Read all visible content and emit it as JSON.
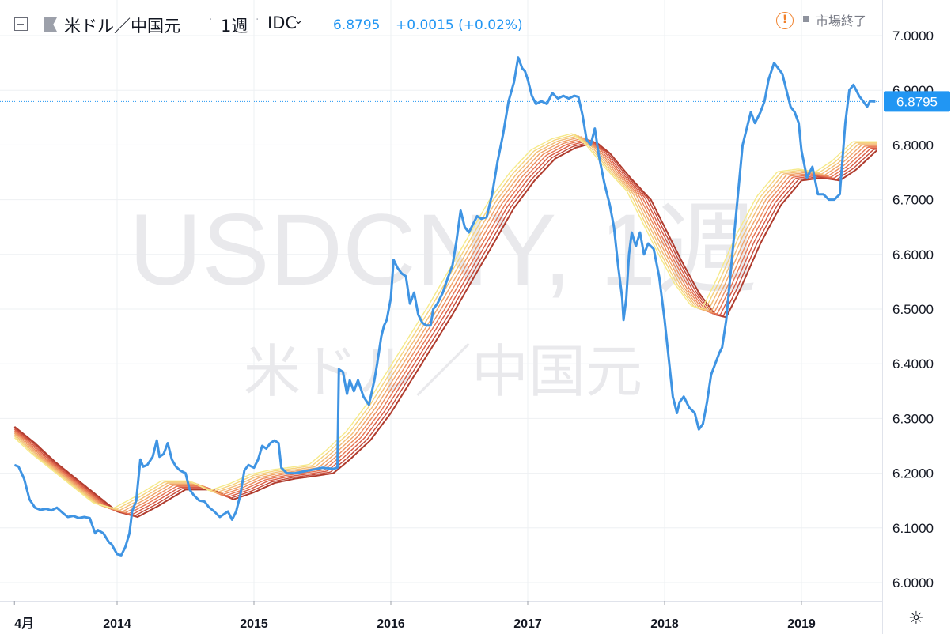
{
  "header": {
    "symbol_name": "米ドル／中国元",
    "interval": "1週",
    "source": "IDC",
    "price": "6.8795",
    "change": "+0.0015 (+0.02%)",
    "market_status": "市場終了",
    "sep": "·"
  },
  "watermark": {
    "symbol": "USDCNY, 1週",
    "name": "米ドル／中国元"
  },
  "icons": {
    "toggle": "plus-square-icon",
    "flag": "flag-icon",
    "dropdown": "chevron-down-icon",
    "alert": "alert-circle-icon",
    "status": "square-icon",
    "settings": "gear-icon"
  },
  "colors": {
    "price_line": "#3f94e3",
    "current_price_label_bg": "#2196f3",
    "ribbon": [
      "#f6ea8a",
      "#f5d37e",
      "#f3bd76",
      "#f0a56a",
      "#ec8d5e",
      "#e67553",
      "#d95c45",
      "#c64a3a",
      "#b03c2e"
    ],
    "alert": "#f0812c",
    "grid": "#eef0f3"
  },
  "chart_data": {
    "type": "line",
    "title": "USDCNY, 1週",
    "xlabel": "",
    "ylabel": "",
    "ylim": [
      5.96,
      7.08
    ],
    "y_ticks": [
      "6.0000",
      "6.1000",
      "6.2000",
      "6.3000",
      "6.4000",
      "6.5000",
      "6.6000",
      "6.7000",
      "6.8000",
      "6.9000",
      "7.0000"
    ],
    "x_ticks": [
      "4月",
      "2014",
      "2015",
      "2016",
      "2017",
      "2018",
      "2019"
    ],
    "x_tick_positions": [
      2013.25,
      2014.0,
      2015.0,
      2016.0,
      2017.0,
      2018.0,
      2019.0
    ],
    "xlim": [
      2013.25,
      2019.66
    ],
    "current_price": 6.8795,
    "current_price_label": "6.8795",
    "ribbon_series_count": 9,
    "series": [
      {
        "points": [
          [
            2013.25,
            6.215
          ],
          [
            2013.28,
            6.212
          ],
          [
            2013.32,
            6.19
          ],
          [
            2013.36,
            6.152
          ],
          [
            2013.4,
            6.137
          ],
          [
            2013.44,
            6.133
          ],
          [
            2013.48,
            6.135
          ],
          [
            2013.52,
            6.132
          ],
          [
            2013.56,
            6.137
          ],
          [
            2013.6,
            6.128
          ],
          [
            2013.64,
            6.12
          ],
          [
            2013.68,
            6.122
          ],
          [
            2013.72,
            6.118
          ],
          [
            2013.76,
            6.12
          ],
          [
            2013.8,
            6.118
          ],
          [
            2013.84,
            6.09
          ],
          [
            2013.86,
            6.096
          ],
          [
            2013.9,
            6.09
          ],
          [
            2013.94,
            6.074
          ],
          [
            2013.96,
            6.07
          ],
          [
            2014.0,
            6.052
          ],
          [
            2014.03,
            6.05
          ],
          [
            2014.06,
            6.065
          ],
          [
            2014.09,
            6.09
          ],
          [
            2014.11,
            6.13
          ],
          [
            2014.14,
            6.15
          ],
          [
            2014.17,
            6.225
          ],
          [
            2014.19,
            6.212
          ],
          [
            2014.22,
            6.215
          ],
          [
            2014.26,
            6.23
          ],
          [
            2014.29,
            6.26
          ],
          [
            2014.31,
            6.23
          ],
          [
            2014.34,
            6.235
          ],
          [
            2014.37,
            6.255
          ],
          [
            2014.4,
            6.225
          ],
          [
            2014.43,
            6.212
          ],
          [
            2014.46,
            6.205
          ],
          [
            2014.5,
            6.2
          ],
          [
            2014.53,
            6.17
          ],
          [
            2014.56,
            6.16
          ],
          [
            2014.6,
            6.15
          ],
          [
            2014.64,
            6.148
          ],
          [
            2014.67,
            6.138
          ],
          [
            2014.71,
            6.13
          ],
          [
            2014.75,
            6.12
          ],
          [
            2014.78,
            6.125
          ],
          [
            2014.81,
            6.13
          ],
          [
            2014.84,
            6.115
          ],
          [
            2014.87,
            6.13
          ],
          [
            2014.9,
            6.16
          ],
          [
            2014.93,
            6.205
          ],
          [
            2014.96,
            6.215
          ],
          [
            2015.0,
            6.21
          ],
          [
            2015.03,
            6.225
          ],
          [
            2015.06,
            6.25
          ],
          [
            2015.09,
            6.245
          ],
          [
            2015.12,
            6.255
          ],
          [
            2015.15,
            6.26
          ],
          [
            2015.18,
            6.255
          ],
          [
            2015.2,
            6.21
          ],
          [
            2015.24,
            6.2
          ],
          [
            2015.3,
            6.2
          ],
          [
            2015.4,
            6.205
          ],
          [
            2015.5,
            6.21
          ],
          [
            2015.58,
            6.208
          ],
          [
            2015.61,
            6.21
          ],
          [
            2015.62,
            6.39
          ],
          [
            2015.65,
            6.385
          ],
          [
            2015.68,
            6.345
          ],
          [
            2015.7,
            6.37
          ],
          [
            2015.73,
            6.35
          ],
          [
            2015.76,
            6.37
          ],
          [
            2015.8,
            6.34
          ],
          [
            2015.84,
            6.325
          ],
          [
            2015.88,
            6.37
          ],
          [
            2015.9,
            6.4
          ],
          [
            2015.93,
            6.45
          ],
          [
            2015.95,
            6.47
          ],
          [
            2015.97,
            6.48
          ],
          [
            2016.0,
            6.52
          ],
          [
            2016.02,
            6.59
          ],
          [
            2016.05,
            6.575
          ],
          [
            2016.08,
            6.565
          ],
          [
            2016.11,
            6.56
          ],
          [
            2016.14,
            6.51
          ],
          [
            2016.17,
            6.53
          ],
          [
            2016.2,
            6.49
          ],
          [
            2016.23,
            6.475
          ],
          [
            2016.26,
            6.47
          ],
          [
            2016.29,
            6.47
          ],
          [
            2016.31,
            6.5
          ],
          [
            2016.34,
            6.51
          ],
          [
            2016.38,
            6.53
          ],
          [
            2016.42,
            6.56
          ],
          [
            2016.45,
            6.58
          ],
          [
            2016.48,
            6.625
          ],
          [
            2016.51,
            6.68
          ],
          [
            2016.54,
            6.65
          ],
          [
            2016.57,
            6.64
          ],
          [
            2016.6,
            6.655
          ],
          [
            2016.63,
            6.67
          ],
          [
            2016.66,
            6.665
          ],
          [
            2016.7,
            6.668
          ],
          [
            2016.74,
            6.71
          ],
          [
            2016.78,
            6.77
          ],
          [
            2016.82,
            6.82
          ],
          [
            2016.86,
            6.88
          ],
          [
            2016.9,
            6.915
          ],
          [
            2016.93,
            6.96
          ],
          [
            2016.96,
            6.94
          ],
          [
            2016.98,
            6.935
          ],
          [
            2017.0,
            6.92
          ],
          [
            2017.03,
            6.89
          ],
          [
            2017.06,
            6.875
          ],
          [
            2017.1,
            6.88
          ],
          [
            2017.14,
            6.875
          ],
          [
            2017.18,
            6.895
          ],
          [
            2017.22,
            6.885
          ],
          [
            2017.26,
            6.89
          ],
          [
            2017.3,
            6.885
          ],
          [
            2017.34,
            6.89
          ],
          [
            2017.37,
            6.888
          ],
          [
            2017.4,
            6.855
          ],
          [
            2017.43,
            6.81
          ],
          [
            2017.46,
            6.8
          ],
          [
            2017.49,
            6.83
          ],
          [
            2017.52,
            6.78
          ],
          [
            2017.56,
            6.73
          ],
          [
            2017.6,
            6.69
          ],
          [
            2017.63,
            6.65
          ],
          [
            2017.66,
            6.58
          ],
          [
            2017.69,
            6.52
          ],
          [
            2017.7,
            6.48
          ],
          [
            2017.72,
            6.52
          ],
          [
            2017.74,
            6.6
          ],
          [
            2017.76,
            6.64
          ],
          [
            2017.79,
            6.615
          ],
          [
            2017.82,
            6.64
          ],
          [
            2017.85,
            6.6
          ],
          [
            2017.88,
            6.62
          ],
          [
            2017.92,
            6.61
          ],
          [
            2017.96,
            6.56
          ],
          [
            2018.0,
            6.48
          ],
          [
            2018.03,
            6.41
          ],
          [
            2018.06,
            6.34
          ],
          [
            2018.09,
            6.31
          ],
          [
            2018.11,
            6.33
          ],
          [
            2018.14,
            6.34
          ],
          [
            2018.18,
            6.32
          ],
          [
            2018.22,
            6.31
          ],
          [
            2018.25,
            6.28
          ],
          [
            2018.28,
            6.29
          ],
          [
            2018.31,
            6.33
          ],
          [
            2018.34,
            6.38
          ],
          [
            2018.37,
            6.4
          ],
          [
            2018.4,
            6.42
          ],
          [
            2018.42,
            6.43
          ],
          [
            2018.45,
            6.48
          ],
          [
            2018.48,
            6.56
          ],
          [
            2018.51,
            6.64
          ],
          [
            2018.54,
            6.72
          ],
          [
            2018.57,
            6.8
          ],
          [
            2018.6,
            6.83
          ],
          [
            2018.63,
            6.86
          ],
          [
            2018.66,
            6.84
          ],
          [
            2018.7,
            6.86
          ],
          [
            2018.73,
            6.88
          ],
          [
            2018.76,
            6.92
          ],
          [
            2018.8,
            6.95
          ],
          [
            2018.83,
            6.94
          ],
          [
            2018.86,
            6.93
          ],
          [
            2018.89,
            6.9
          ],
          [
            2018.92,
            6.87
          ],
          [
            2018.95,
            6.86
          ],
          [
            2018.98,
            6.84
          ],
          [
            2019.0,
            6.79
          ],
          [
            2019.04,
            6.74
          ],
          [
            2019.08,
            6.76
          ],
          [
            2019.12,
            6.71
          ],
          [
            2019.16,
            6.71
          ],
          [
            2019.2,
            6.7
          ],
          [
            2019.24,
            6.7
          ],
          [
            2019.28,
            6.71
          ],
          [
            2019.32,
            6.84
          ],
          [
            2019.35,
            6.9
          ],
          [
            2019.38,
            6.91
          ],
          [
            2019.42,
            6.89
          ],
          [
            2019.45,
            6.88
          ],
          [
            2019.48,
            6.87
          ],
          [
            2019.5,
            6.88
          ],
          [
            2019.54,
            6.8795
          ]
        ]
      }
    ],
    "ribbon_base": {
      "points": [
        [
          2013.25,
          6.285
        ],
        [
          2013.4,
          6.255
        ],
        [
          2013.55,
          6.22
        ],
        [
          2013.7,
          6.19
        ],
        [
          2013.85,
          6.16
        ],
        [
          2014.0,
          6.13
        ],
        [
          2014.15,
          6.12
        ],
        [
          2014.3,
          6.14
        ],
        [
          2014.5,
          6.17
        ],
        [
          2014.7,
          6.17
        ],
        [
          2014.85,
          6.152
        ],
        [
          2015.0,
          6.165
        ],
        [
          2015.15,
          6.182
        ],
        [
          2015.3,
          6.19
        ],
        [
          2015.45,
          6.195
        ],
        [
          2015.58,
          6.2
        ],
        [
          2015.7,
          6.225
        ],
        [
          2015.85,
          6.26
        ],
        [
          2016.0,
          6.31
        ],
        [
          2016.15,
          6.37
        ],
        [
          2016.3,
          6.43
        ],
        [
          2016.45,
          6.49
        ],
        [
          2016.6,
          6.555
        ],
        [
          2016.75,
          6.62
        ],
        [
          2016.9,
          6.685
        ],
        [
          2017.05,
          6.735
        ],
        [
          2017.2,
          6.775
        ],
        [
          2017.35,
          6.795
        ],
        [
          2017.5,
          6.805
        ],
        [
          2017.6,
          6.785
        ],
        [
          2017.75,
          6.74
        ],
        [
          2017.9,
          6.7
        ],
        [
          2018.0,
          6.65
        ],
        [
          2018.12,
          6.59
        ],
        [
          2018.25,
          6.53
        ],
        [
          2018.37,
          6.49
        ],
        [
          2018.45,
          6.485
        ],
        [
          2018.55,
          6.535
        ],
        [
          2018.7,
          6.62
        ],
        [
          2018.85,
          6.69
        ],
        [
          2019.0,
          6.735
        ],
        [
          2019.15,
          6.74
        ],
        [
          2019.28,
          6.735
        ],
        [
          2019.4,
          6.755
        ],
        [
          2019.55,
          6.79
        ]
      ]
    }
  }
}
